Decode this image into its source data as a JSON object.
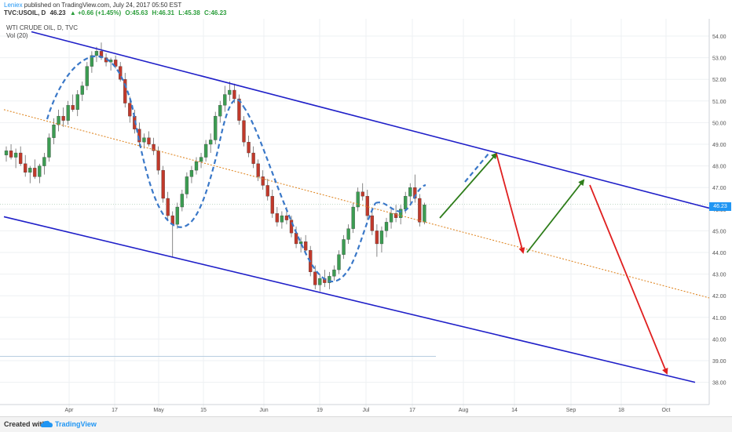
{
  "header": {
    "author": "Leniex",
    "published_text": " published on TradingView.com, July 24, 2017 05:50 EST",
    "symbol": "TVC:USOIL, D",
    "last": "46.23",
    "change": "▲ +0.66 (+1.45%)",
    "open": "O:45.63",
    "high": "H:46.31",
    "low": "L:45.38",
    "close": "C:46.23"
  },
  "legend": {
    "title": "WTI CRUDE OIL, D, TVC",
    "volume": "Vol (20)"
  },
  "footer": {
    "created_with": "Created with",
    "brand": "TradingView"
  },
  "colors": {
    "up": "#3c9c52",
    "down": "#c0392b",
    "channel": "#1f1fc8",
    "midline": "#e08a2a",
    "arrow_up": "#2e7d1a",
    "arrow_down": "#e02020",
    "wave": "#3a78c8",
    "price": "#2196f3"
  },
  "chart_data": {
    "type": "candlestick",
    "x_ticks": [
      "Apr",
      "17",
      "May",
      "15",
      "Jun",
      "19",
      "Jul",
      "17",
      "Aug",
      "14",
      "Sep",
      "18",
      "Oct"
    ],
    "y_ticks": [
      "54.00",
      "53.00",
      "52.00",
      "51.00",
      "50.00",
      "49.00",
      "48.00",
      "47.00",
      "46.00",
      "45.00",
      "44.00",
      "43.00",
      "42.00",
      "41.00",
      "40.00",
      "39.00",
      "38.00"
    ],
    "ylim": [
      37.5,
      54.5
    ],
    "last_price": "46.23",
    "candles": [
      [
        48.5,
        48.9,
        48.2,
        48.7
      ],
      [
        48.7,
        49.0,
        48.3,
        48.4
      ],
      [
        48.4,
        48.8,
        47.9,
        48.6
      ],
      [
        48.6,
        48.9,
        48.0,
        48.1
      ],
      [
        48.1,
        48.5,
        47.5,
        47.7
      ],
      [
        47.7,
        48.0,
        47.2,
        47.9
      ],
      [
        47.9,
        48.3,
        47.4,
        47.5
      ],
      [
        47.5,
        48.1,
        47.2,
        48.0
      ],
      [
        48.0,
        48.6,
        47.6,
        48.4
      ],
      [
        48.4,
        49.5,
        48.2,
        49.3
      ],
      [
        49.3,
        50.2,
        49.0,
        49.9
      ],
      [
        49.9,
        50.6,
        49.6,
        50.3
      ],
      [
        50.3,
        50.7,
        49.8,
        50.1
      ],
      [
        50.1,
        51.0,
        49.9,
        50.8
      ],
      [
        50.8,
        51.3,
        50.5,
        50.6
      ],
      [
        50.6,
        51.5,
        50.3,
        51.3
      ],
      [
        51.3,
        51.9,
        51.0,
        51.7
      ],
      [
        51.7,
        52.8,
        51.5,
        52.6
      ],
      [
        52.6,
        53.3,
        52.3,
        53.1
      ],
      [
        53.1,
        53.5,
        52.8,
        53.3
      ],
      [
        53.3,
        53.7,
        52.9,
        53.0
      ],
      [
        53.0,
        53.2,
        52.6,
        52.8
      ],
      [
        52.8,
        53.0,
        52.4,
        52.9
      ],
      [
        52.9,
        53.1,
        52.5,
        52.6
      ],
      [
        52.6,
        52.8,
        51.9,
        52.0
      ],
      [
        52.0,
        52.3,
        50.7,
        50.9
      ],
      [
        50.9,
        51.2,
        50.0,
        50.3
      ],
      [
        50.3,
        50.6,
        49.5,
        49.7
      ],
      [
        49.7,
        50.0,
        48.9,
        49.1
      ],
      [
        49.1,
        49.5,
        48.8,
        49.3
      ],
      [
        49.3,
        49.6,
        48.9,
        49.0
      ],
      [
        49.0,
        49.3,
        48.5,
        48.7
      ],
      [
        48.7,
        48.9,
        47.6,
        47.8
      ],
      [
        47.8,
        48.0,
        46.3,
        46.5
      ],
      [
        46.5,
        46.8,
        45.5,
        45.7
      ],
      [
        45.7,
        45.9,
        43.8,
        45.3
      ],
      [
        45.3,
        46.3,
        45.1,
        46.1
      ],
      [
        46.1,
        46.9,
        45.9,
        46.7
      ],
      [
        46.7,
        47.7,
        46.5,
        47.5
      ],
      [
        47.5,
        48.0,
        47.2,
        47.8
      ],
      [
        47.8,
        48.4,
        47.6,
        48.2
      ],
      [
        48.2,
        48.6,
        47.9,
        48.4
      ],
      [
        48.4,
        49.2,
        48.2,
        49.0
      ],
      [
        49.0,
        49.5,
        48.6,
        49.2
      ],
      [
        49.2,
        50.5,
        49.0,
        50.3
      ],
      [
        50.3,
        51.0,
        50.0,
        50.8
      ],
      [
        50.8,
        51.7,
        50.5,
        51.3
      ],
      [
        51.3,
        51.9,
        51.0,
        51.5
      ],
      [
        51.5,
        51.8,
        50.9,
        51.1
      ],
      [
        51.1,
        51.3,
        49.9,
        50.1
      ],
      [
        50.1,
        50.3,
        48.9,
        49.1
      ],
      [
        49.1,
        49.4,
        48.4,
        48.6
      ],
      [
        48.6,
        48.9,
        47.9,
        48.1
      ],
      [
        48.1,
        48.3,
        47.3,
        47.5
      ],
      [
        47.5,
        47.8,
        46.9,
        47.1
      ],
      [
        47.1,
        47.4,
        46.4,
        46.6
      ],
      [
        46.6,
        46.9,
        45.6,
        45.8
      ],
      [
        45.8,
        46.1,
        45.2,
        45.4
      ],
      [
        45.4,
        45.9,
        45.1,
        45.7
      ],
      [
        45.7,
        46.1,
        45.3,
        45.5
      ],
      [
        45.5,
        45.7,
        44.7,
        44.9
      ],
      [
        44.9,
        45.2,
        44.2,
        44.4
      ],
      [
        44.4,
        44.7,
        44.0,
        44.5
      ],
      [
        44.5,
        44.8,
        43.9,
        44.1
      ],
      [
        44.1,
        44.3,
        42.9,
        43.1
      ],
      [
        43.1,
        43.4,
        42.3,
        42.5
      ],
      [
        42.5,
        43.0,
        42.2,
        42.8
      ],
      [
        42.8,
        43.2,
        42.4,
        42.6
      ],
      [
        42.6,
        43.1,
        42.3,
        42.9
      ],
      [
        42.9,
        43.4,
        42.7,
        43.2
      ],
      [
        43.2,
        44.1,
        43.0,
        43.9
      ],
      [
        43.9,
        44.8,
        43.7,
        44.6
      ],
      [
        44.6,
        45.3,
        44.4,
        45.1
      ],
      [
        45.1,
        46.3,
        44.9,
        46.1
      ],
      [
        46.1,
        47.0,
        45.9,
        46.8
      ],
      [
        46.8,
        47.2,
        46.4,
        46.6
      ],
      [
        46.6,
        46.9,
        45.5,
        45.7
      ],
      [
        45.7,
        46.0,
        44.8,
        45.0
      ],
      [
        45.0,
        45.3,
        43.8,
        44.4
      ],
      [
        44.4,
        45.2,
        44.0,
        45.0
      ],
      [
        45.0,
        45.6,
        44.7,
        45.4
      ],
      [
        45.4,
        46.0,
        45.1,
        45.8
      ],
      [
        45.8,
        46.2,
        45.4,
        45.6
      ],
      [
        45.6,
        46.2,
        45.3,
        46.0
      ],
      [
        46.0,
        46.8,
        45.8,
        46.6
      ],
      [
        46.6,
        47.2,
        46.3,
        47.0
      ],
      [
        47.0,
        47.6,
        46.3,
        46.5
      ],
      [
        46.5,
        46.7,
        45.2,
        45.4
      ],
      [
        45.4,
        46.3,
        45.3,
        46.2
      ]
    ]
  }
}
